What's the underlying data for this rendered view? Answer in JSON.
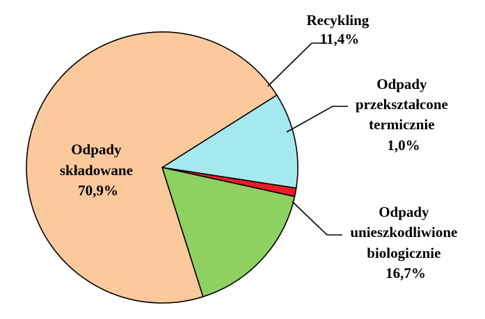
{
  "chart_data": {
    "type": "pie",
    "title": "",
    "slices": [
      {
        "lines": [
          "Recykling",
          "11,4%"
        ],
        "value": 11.4,
        "color": "#a6e8f0"
      },
      {
        "lines": [
          "Odpady",
          "przekształcone",
          "termicznie",
          "1,0%"
        ],
        "value": 1.0,
        "color": "#ee1c24"
      },
      {
        "lines": [
          "Odpady",
          "unieszkodliwione",
          "biologicznie",
          "16,7%"
        ],
        "value": 16.7,
        "color": "#8fd160"
      },
      {
        "lines": [
          "Odpady",
          "składowane",
          "70,9%"
        ],
        "value": 70.9,
        "color": "#fbc99c"
      }
    ],
    "start_angle_deg": 57.7,
    "direction": "clockwise",
    "legend": "none"
  }
}
